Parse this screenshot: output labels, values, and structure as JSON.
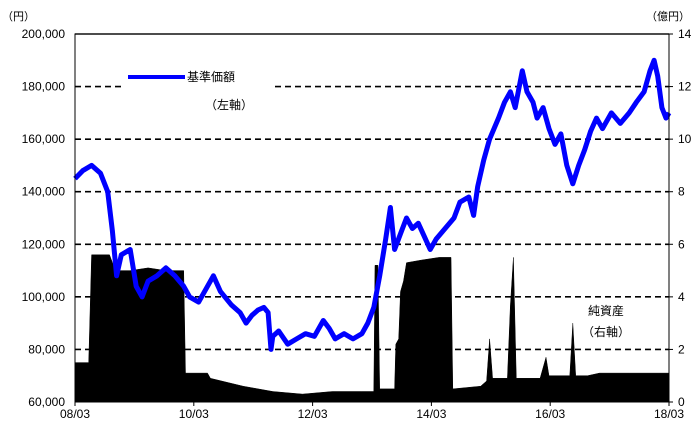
{
  "chart_data": {
    "type": "line",
    "left_axis_unit": "（円）",
    "right_axis_unit": "（億円）",
    "y_left": {
      "range": [
        60000,
        200000
      ],
      "ticks": [
        60000,
        80000,
        100000,
        120000,
        140000,
        160000,
        180000,
        200000
      ],
      "tick_labels": [
        "60,000",
        "80,000",
        "100,000",
        "120,000",
        "140,000",
        "160,000",
        "180,000",
        "200,000"
      ]
    },
    "y_right": {
      "range": [
        0,
        14
      ],
      "ticks": [
        0,
        2,
        4,
        6,
        8,
        10,
        12,
        14
      ],
      "tick_labels": [
        "0",
        "2",
        "4",
        "6",
        "8",
        "10",
        "12",
        "14"
      ]
    },
    "x_axis": {
      "range": [
        2008.17,
        2018.17
      ],
      "ticks": [
        2008.17,
        2010.17,
        2012.17,
        2014.17,
        2016.17,
        2018.17
      ],
      "tick_labels": [
        "08/03",
        "10/03",
        "12/03",
        "14/03",
        "16/03",
        "18/03"
      ]
    },
    "grid": "horizontal dashed",
    "legend": {
      "placement": "top-left",
      "series_label": "基準価額",
      "series_note": "（左軸）"
    },
    "annotation": {
      "label": "純資産",
      "note": "（右軸）"
    },
    "series": [
      {
        "name": "基準価額",
        "axis": "left",
        "color": "#0000ff",
        "points": [
          [
            2008.17,
            145000
          ],
          [
            2008.3,
            148000
          ],
          [
            2008.45,
            150000
          ],
          [
            2008.6,
            147000
          ],
          [
            2008.72,
            140000
          ],
          [
            2008.8,
            125000
          ],
          [
            2008.87,
            108000
          ],
          [
            2008.95,
            116000
          ],
          [
            2009.1,
            118000
          ],
          [
            2009.2,
            104000
          ],
          [
            2009.3,
            100000
          ],
          [
            2009.4,
            106000
          ],
          [
            2009.55,
            108000
          ],
          [
            2009.7,
            111000
          ],
          [
            2009.85,
            108000
          ],
          [
            2010.0,
            104000
          ],
          [
            2010.1,
            100000
          ],
          [
            2010.25,
            98000
          ],
          [
            2010.4,
            104000
          ],
          [
            2010.5,
            108000
          ],
          [
            2010.62,
            102000
          ],
          [
            2010.8,
            97000
          ],
          [
            2010.95,
            94000
          ],
          [
            2011.05,
            90000
          ],
          [
            2011.15,
            93000
          ],
          [
            2011.25,
            95000
          ],
          [
            2011.35,
            96000
          ],
          [
            2011.42,
            94000
          ],
          [
            2011.47,
            80000
          ],
          [
            2011.5,
            85000
          ],
          [
            2011.6,
            87000
          ],
          [
            2011.75,
            82000
          ],
          [
            2011.9,
            84000
          ],
          [
            2012.05,
            86000
          ],
          [
            2012.2,
            85000
          ],
          [
            2012.35,
            91000
          ],
          [
            2012.45,
            88000
          ],
          [
            2012.55,
            84000
          ],
          [
            2012.7,
            86000
          ],
          [
            2012.85,
            84000
          ],
          [
            2013.0,
            86000
          ],
          [
            2013.1,
            90000
          ],
          [
            2013.2,
            96000
          ],
          [
            2013.3,
            108000
          ],
          [
            2013.4,
            122000
          ],
          [
            2013.48,
            134000
          ],
          [
            2013.55,
            118000
          ],
          [
            2013.65,
            124000
          ],
          [
            2013.75,
            130000
          ],
          [
            2013.85,
            126000
          ],
          [
            2013.95,
            128000
          ],
          [
            2014.05,
            123000
          ],
          [
            2014.15,
            118000
          ],
          [
            2014.25,
            122000
          ],
          [
            2014.4,
            126000
          ],
          [
            2014.55,
            130000
          ],
          [
            2014.65,
            136000
          ],
          [
            2014.8,
            138000
          ],
          [
            2014.88,
            131000
          ],
          [
            2014.95,
            142000
          ],
          [
            2015.05,
            152000
          ],
          [
            2015.15,
            160000
          ],
          [
            2015.3,
            168000
          ],
          [
            2015.4,
            174000
          ],
          [
            2015.5,
            178000
          ],
          [
            2015.58,
            172000
          ],
          [
            2015.7,
            186000
          ],
          [
            2015.78,
            178000
          ],
          [
            2015.88,
            174000
          ],
          [
            2015.95,
            168000
          ],
          [
            2016.05,
            172000
          ],
          [
            2016.15,
            164000
          ],
          [
            2016.25,
            158000
          ],
          [
            2016.35,
            162000
          ],
          [
            2016.45,
            150000
          ],
          [
            2016.55,
            143000
          ],
          [
            2016.65,
            150000
          ],
          [
            2016.75,
            156000
          ],
          [
            2016.85,
            163000
          ],
          [
            2016.95,
            168000
          ],
          [
            2017.05,
            164000
          ],
          [
            2017.2,
            170000
          ],
          [
            2017.35,
            166000
          ],
          [
            2017.5,
            170000
          ],
          [
            2017.62,
            174000
          ],
          [
            2017.75,
            178000
          ],
          [
            2017.85,
            186000
          ],
          [
            2017.92,
            190000
          ],
          [
            2017.98,
            184000
          ],
          [
            2018.05,
            172000
          ],
          [
            2018.12,
            168000
          ],
          [
            2018.17,
            170000
          ]
        ]
      },
      {
        "name": "純資産",
        "axis": "right",
        "color": "#000000",
        "points": [
          [
            2008.17,
            1.5
          ],
          [
            2008.4,
            1.5
          ],
          [
            2008.45,
            5.6
          ],
          [
            2008.75,
            5.6
          ],
          [
            2008.85,
            5.0
          ],
          [
            2009.1,
            5.0
          ],
          [
            2009.4,
            5.1
          ],
          [
            2009.7,
            5.0
          ],
          [
            2010.0,
            5.0
          ],
          [
            2010.03,
            1.1
          ],
          [
            2010.4,
            1.1
          ],
          [
            2010.45,
            0.9
          ],
          [
            2011.0,
            0.6
          ],
          [
            2011.5,
            0.4
          ],
          [
            2012.0,
            0.3
          ],
          [
            2012.5,
            0.4
          ],
          [
            2013.0,
            0.4
          ],
          [
            2013.2,
            0.4
          ],
          [
            2013.22,
            5.2
          ],
          [
            2013.27,
            5.2
          ],
          [
            2013.3,
            0.5
          ],
          [
            2013.55,
            0.5
          ],
          [
            2013.57,
            2.2
          ],
          [
            2013.62,
            2.4
          ],
          [
            2013.65,
            4.2
          ],
          [
            2013.7,
            4.6
          ],
          [
            2013.75,
            5.3
          ],
          [
            2014.0,
            5.4
          ],
          [
            2014.3,
            5.5
          ],
          [
            2014.5,
            5.5
          ],
          [
            2014.53,
            0.5
          ],
          [
            2015.0,
            0.6
          ],
          [
            2015.1,
            0.8
          ],
          [
            2015.15,
            2.4
          ],
          [
            2015.2,
            0.9
          ],
          [
            2015.45,
            0.9
          ],
          [
            2015.5,
            3.7
          ],
          [
            2015.55,
            5.5
          ],
          [
            2015.6,
            0.9
          ],
          [
            2016.0,
            0.9
          ],
          [
            2016.1,
            1.7
          ],
          [
            2016.15,
            1.0
          ],
          [
            2016.5,
            1.0
          ],
          [
            2016.55,
            3.0
          ],
          [
            2016.6,
            1.0
          ],
          [
            2016.8,
            1.0
          ],
          [
            2017.0,
            1.1
          ],
          [
            2017.5,
            1.1
          ],
          [
            2018.0,
            1.1
          ],
          [
            2018.17,
            1.1
          ]
        ]
      }
    ]
  }
}
